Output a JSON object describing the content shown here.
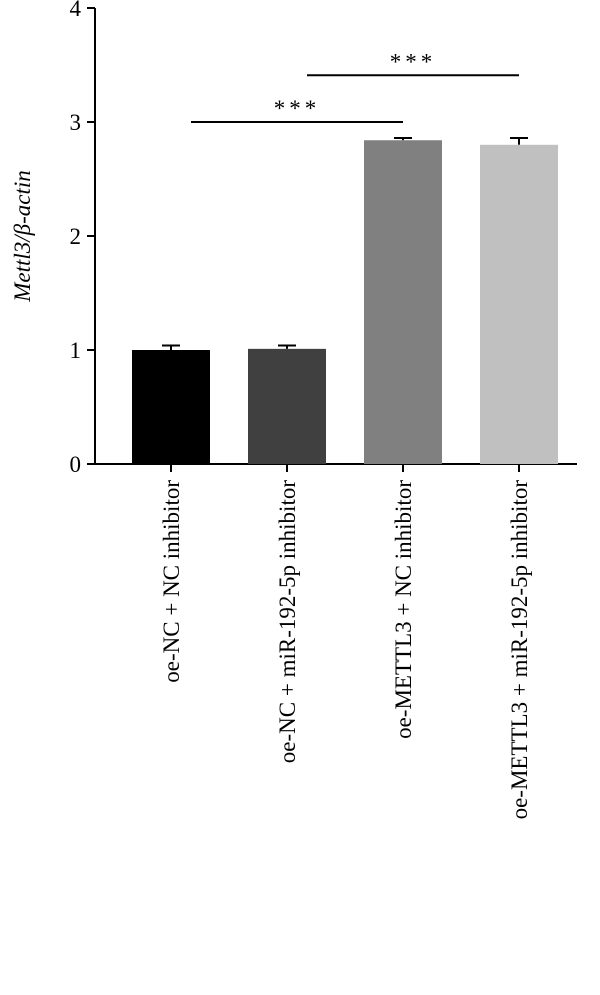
{
  "chart_data": {
    "type": "bar",
    "ylabel": "Mettl3/β-actin",
    "categories": [
      "oe-NC + NC inhibitor",
      "oe-NC + miR-192-5p inhibitor",
      "oe-METTL3 + NC inhibitor",
      "oe-METTL3 + miR-192-5p inhibitor"
    ],
    "values": [
      1.0,
      1.01,
      2.84,
      2.8
    ],
    "errors": [
      0.04,
      0.03,
      0.02,
      0.06
    ],
    "colors": [
      "#000000",
      "#404040",
      "#808080",
      "#c0c0c0"
    ],
    "ylim": [
      0,
      4
    ],
    "yticks": [
      0,
      1,
      2,
      3,
      4
    ],
    "annotations": [
      {
        "label": "***",
        "categories": [
          0,
          2
        ],
        "y": 3.0
      },
      {
        "label": "***",
        "categories": [
          1,
          3
        ],
        "y": 3.41
      }
    ]
  }
}
